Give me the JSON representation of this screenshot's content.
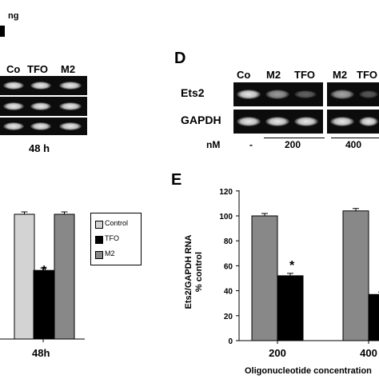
{
  "top_left": {
    "fragment": "ng"
  },
  "panel_c": {
    "lanes": [
      "Co",
      "TFO",
      "M2"
    ],
    "time_label": "48 h"
  },
  "panel_d": {
    "letter": "D",
    "lanes_group1": [
      "Co",
      "M2",
      "TFO"
    ],
    "lanes_group2": [
      "M2",
      "TFO"
    ],
    "row_labels": [
      "Ets2",
      "GAPDH"
    ],
    "nm_label": "nM",
    "nm_values": [
      "-",
      "200",
      "400"
    ]
  },
  "panel_bl": {
    "legend": [
      "Control",
      "TFO",
      "M2"
    ],
    "x_label": "48h",
    "star": "*"
  },
  "panel_e": {
    "letter": "E",
    "ylabel_line1": "Ets2/GAPDH RNA",
    "ylabel_line2": "% control",
    "xlabel": "Oligonucleotide concentration",
    "star": "*"
  },
  "chart_data": [
    {
      "type": "bar",
      "categories": [
        "48h"
      ],
      "series": [
        {
          "name": "Control",
          "values": [
            100
          ],
          "color": "#d3d3d3"
        },
        {
          "name": "TFO",
          "values": [
            55
          ],
          "color": "#000000"
        },
        {
          "name": "M2",
          "values": [
            100
          ],
          "color": "#888888"
        }
      ],
      "xlabel": "48h",
      "legend_position": "right"
    },
    {
      "type": "bar",
      "categories": [
        "200",
        "400"
      ],
      "series": [
        {
          "name": "M2",
          "values": [
            100,
            104
          ],
          "color": "#888888"
        },
        {
          "name": "TFO",
          "values": [
            52,
            37
          ],
          "color": "#000000"
        }
      ],
      "yticks": [
        0,
        20,
        40,
        60,
        80,
        100,
        120
      ],
      "ylim": [
        0,
        120
      ],
      "ylabel": "Ets2/GAPDH RNA % control",
      "xlabel": "Oligonucleotide concentration",
      "grid": false
    }
  ]
}
